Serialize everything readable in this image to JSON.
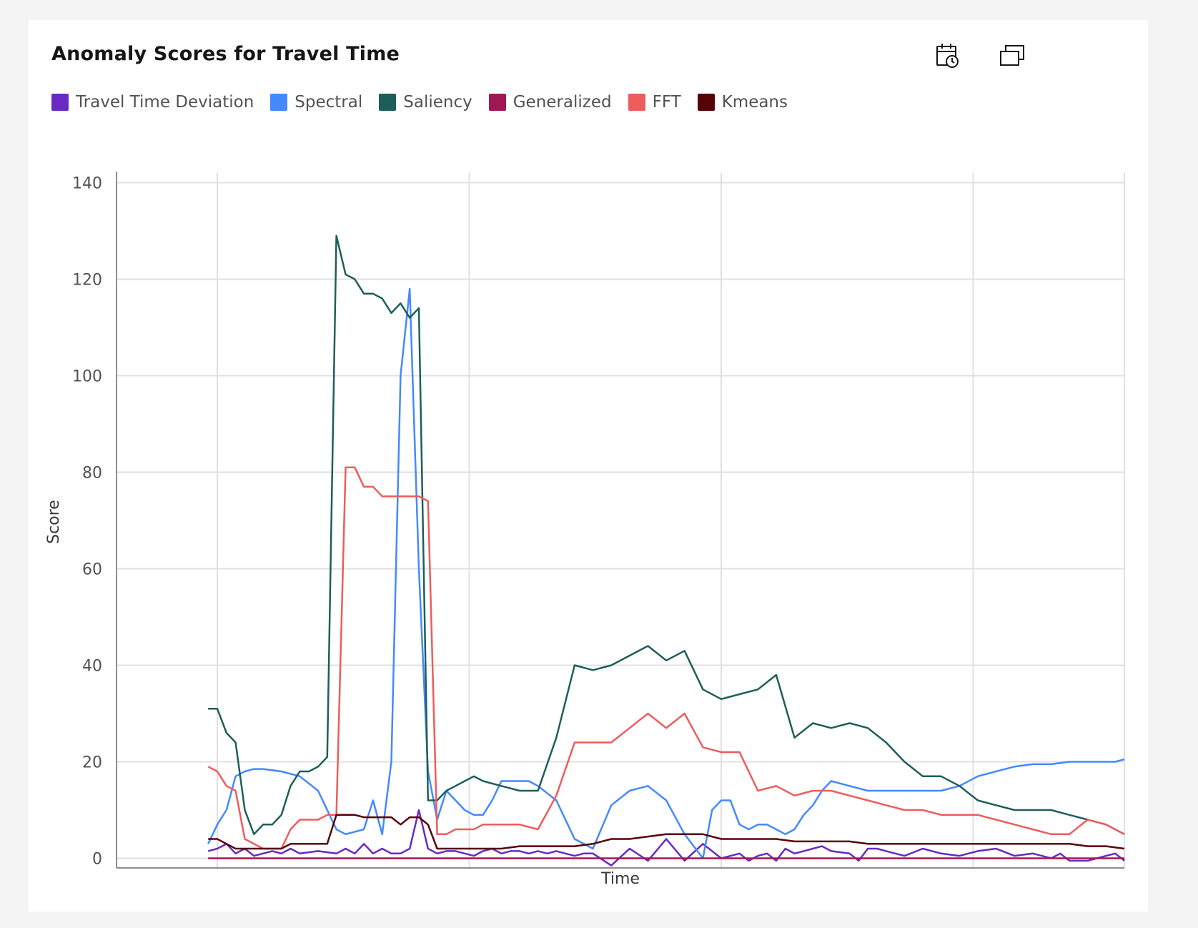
{
  "card": {
    "title": "Anomaly Scores for Travel Time",
    "toolbar": [
      {
        "name": "calendar-clock-icon"
      },
      {
        "name": "maximize-window-icon"
      }
    ]
  },
  "chart_data": {
    "type": "line",
    "title": "Anomaly Scores for Travel Time",
    "xlabel": "Time",
    "ylabel": "Score",
    "ylim": [
      -2,
      142
    ],
    "xlim": [
      -10,
      100
    ],
    "yticks": [
      0,
      20,
      40,
      60,
      80,
      100,
      120,
      140
    ],
    "grid": true,
    "legend_position": "top-left",
    "series": [
      {
        "name": "Travel Time Deviation",
        "color": "#6929c4",
        "x": [
          0,
          1,
          2,
          3,
          4,
          5,
          6,
          7,
          8,
          9,
          10,
          12,
          14,
          15,
          16,
          17,
          18,
          19,
          20,
          21,
          22,
          23,
          24,
          25,
          26,
          27,
          28,
          29,
          30,
          31,
          32,
          33,
          34,
          35,
          36,
          37,
          38,
          39,
          40,
          41,
          42,
          44,
          46,
          48,
          50,
          52,
          54,
          56,
          58,
          59,
          60,
          61,
          62,
          63,
          64,
          65,
          66,
          67,
          68,
          70,
          71,
          72,
          73,
          74,
          75,
          76,
          78,
          80,
          82,
          84,
          86,
          88,
          90,
          91,
          92,
          93,
          94,
          96,
          98,
          99,
          100
        ],
        "y": [
          1.5,
          2,
          3,
          1,
          2,
          0.5,
          1,
          1.5,
          1,
          2,
          1,
          1.5,
          1,
          2,
          1,
          3,
          1,
          2,
          1,
          1,
          2,
          10,
          2,
          1,
          1.5,
          1.5,
          1,
          0.5,
          1.5,
          2,
          1,
          1.5,
          1.5,
          1,
          1.5,
          1,
          1.5,
          1,
          0.5,
          1,
          1,
          -1.5,
          2,
          -0.5,
          4,
          -0.5,
          3,
          0,
          1,
          -0.5,
          0.5,
          1,
          -0.5,
          2,
          1,
          1.5,
          2,
          2.5,
          1.5,
          1,
          -0.5,
          2,
          2,
          1.5,
          1,
          0.5,
          2,
          1,
          0.5,
          1.5,
          2,
          0.5,
          1,
          0.5,
          0,
          1,
          -0.5,
          -0.5,
          0.5,
          1,
          -0.5
        ]
      },
      {
        "name": "Spectral",
        "color": "#4589ff",
        "x": [
          0,
          1,
          2,
          3,
          4,
          5,
          6,
          8,
          10,
          12,
          14,
          15,
          16,
          17,
          18,
          19,
          20,
          21,
          22,
          23,
          24,
          25,
          26,
          27,
          28,
          29,
          30,
          31,
          32,
          33,
          34,
          35,
          36,
          38,
          40,
          42,
          44,
          46,
          48,
          50,
          52,
          54,
          55,
          56,
          57,
          58,
          59,
          60,
          61,
          62,
          63,
          64,
          65,
          66,
          67,
          68,
          70,
          72,
          74,
          76,
          78,
          80,
          82,
          84,
          86,
          88,
          90,
          92,
          94,
          96,
          98,
          99,
          100
        ],
        "y": [
          3,
          7,
          10,
          17,
          18,
          18.5,
          18.5,
          18,
          17,
          14,
          6,
          5,
          5.5,
          6,
          12,
          5,
          20,
          100,
          118,
          60,
          18,
          8,
          14,
          12,
          10,
          9,
          9,
          12,
          16,
          16,
          16,
          16,
          15,
          12,
          4,
          2,
          11,
          14,
          15,
          12,
          5,
          0,
          10,
          12,
          12,
          7,
          6,
          7,
          7,
          6,
          5,
          6,
          9,
          11,
          14,
          16,
          15,
          14,
          14,
          14,
          14,
          14,
          15,
          17,
          18,
          19,
          19.5,
          19.5,
          20,
          20,
          20,
          20,
          20.5
        ]
      },
      {
        "name": "Saliency",
        "color": "#1e5e5a",
        "x": [
          0,
          1,
          2,
          3,
          4,
          5,
          6,
          7,
          8,
          9,
          10,
          11,
          12,
          13,
          14,
          15,
          16,
          17,
          18,
          19,
          20,
          21,
          22,
          23,
          24,
          25,
          26,
          27,
          28,
          29,
          30,
          32,
          34,
          36,
          38,
          40,
          42,
          44,
          46,
          48,
          50,
          52,
          54,
          56,
          58,
          60,
          62,
          64,
          66,
          68,
          70,
          72,
          74,
          76,
          78,
          80,
          82,
          84,
          86,
          88,
          90,
          92,
          94,
          96,
          98,
          100
        ],
        "y": [
          31,
          31,
          26,
          24,
          10,
          5,
          7,
          7,
          9,
          15,
          18,
          18,
          19,
          21,
          129,
          121,
          120,
          117,
          117,
          116,
          113,
          115,
          112,
          114,
          12,
          12,
          14,
          15,
          16,
          17,
          16,
          15,
          14,
          14,
          25,
          40,
          39,
          40,
          42,
          44,
          41,
          43,
          35,
          33,
          34,
          35,
          38,
          25,
          28,
          27,
          28,
          27,
          24,
          20,
          17,
          17,
          15,
          12,
          11,
          10,
          10,
          10,
          9,
          8,
          7,
          5
        ]
      },
      {
        "name": "Generalized",
        "color": "#9f1853",
        "x": [
          0,
          10,
          20,
          30,
          40,
          50,
          60,
          70,
          80,
          90,
          100
        ],
        "y": [
          0,
          0,
          0,
          0,
          0,
          0,
          0,
          0,
          0,
          0,
          0
        ]
      },
      {
        "name": "FFT",
        "color": "#ee5c5c",
        "x": [
          0,
          1,
          2,
          3,
          4,
          5,
          6,
          7,
          8,
          9,
          10,
          11,
          12,
          13,
          14,
          15,
          16,
          17,
          18,
          19,
          20,
          21,
          22,
          23,
          24,
          25,
          26,
          27,
          28,
          29,
          30,
          32,
          34,
          36,
          38,
          40,
          42,
          44,
          46,
          48,
          50,
          52,
          54,
          56,
          58,
          60,
          62,
          64,
          66,
          68,
          70,
          72,
          74,
          76,
          78,
          80,
          82,
          84,
          86,
          88,
          90,
          92,
          94,
          96,
          98,
          100
        ],
        "y": [
          19,
          18,
          15,
          14,
          4,
          3,
          2,
          2,
          2,
          6,
          8,
          8,
          8,
          9,
          9,
          81,
          81,
          77,
          77,
          75,
          75,
          75,
          75,
          75,
          74,
          5,
          5,
          6,
          6,
          6,
          7,
          7,
          7,
          6,
          13,
          24,
          24,
          24,
          27,
          30,
          27,
          30,
          23,
          22,
          22,
          14,
          15,
          13,
          14,
          14,
          13,
          12,
          11,
          10,
          10,
          9,
          9,
          9,
          8,
          7,
          6,
          5,
          5,
          8,
          7,
          5
        ]
      },
      {
        "name": "Kmeans",
        "color": "#570408",
        "x": [
          0,
          1,
          2,
          3,
          4,
          5,
          6,
          7,
          8,
          9,
          10,
          11,
          12,
          13,
          14,
          15,
          16,
          17,
          18,
          19,
          20,
          21,
          22,
          23,
          24,
          25,
          26,
          28,
          30,
          32,
          34,
          36,
          38,
          40,
          42,
          44,
          46,
          48,
          50,
          52,
          54,
          56,
          58,
          60,
          62,
          64,
          66,
          68,
          70,
          72,
          74,
          76,
          78,
          80,
          82,
          84,
          86,
          88,
          90,
          92,
          94,
          96,
          98,
          100
        ],
        "y": [
          4,
          4,
          3,
          2,
          2,
          2,
          2,
          2,
          2,
          3,
          3,
          3,
          3,
          3,
          9,
          9,
          9,
          8.5,
          8.5,
          8.5,
          8.5,
          7,
          8.5,
          8.5,
          7,
          2,
          2,
          2,
          2,
          2,
          2.5,
          2.5,
          2.5,
          2.5,
          3,
          4,
          4,
          4.5,
          5,
          5,
          5,
          4,
          4,
          4,
          4,
          3.5,
          3.5,
          3.5,
          3.5,
          3,
          3,
          3,
          3,
          3,
          3,
          3,
          3,
          3,
          3,
          3,
          3,
          2.5,
          2.5,
          2
        ]
      }
    ]
  }
}
